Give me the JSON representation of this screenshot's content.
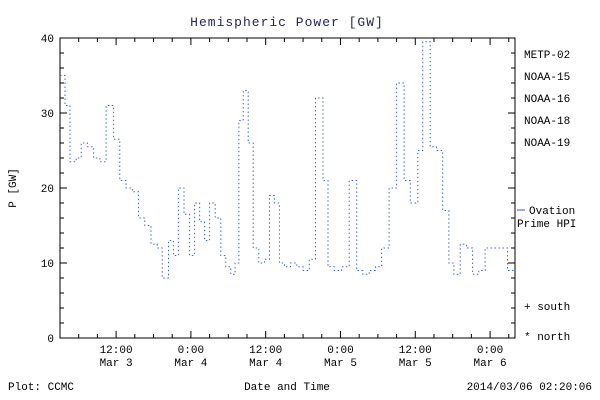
{
  "chart_data": {
    "type": "line",
    "title": "Hemispheric Power [GW]",
    "xlabel": "Date and Time",
    "ylabel": "P [GW]",
    "ylim": [
      0,
      40
    ],
    "xlim_hours": [
      0,
      73
    ],
    "grid": false,
    "legend_position": "right-outside",
    "y_ticks": [
      0,
      10,
      20,
      30,
      40
    ],
    "x_ticks": [
      {
        "t": 9,
        "time": "12:00",
        "date": "Mar 3"
      },
      {
        "t": 21,
        "time": "0:00",
        "date": "Mar 4"
      },
      {
        "t": 33,
        "time": "12:00",
        "date": "Mar 4"
      },
      {
        "t": 45,
        "time": "0:00",
        "date": "Mar 5"
      },
      {
        "t": 57,
        "time": "12:00",
        "date": "Mar 5"
      },
      {
        "t": 69,
        "time": "0:00",
        "date": "Mar 6"
      }
    ],
    "series": [
      {
        "name": "Ovation Prime HPI",
        "color": "#4466cc",
        "style": "dotted-step",
        "points": [
          [
            0,
            35
          ],
          [
            0.8,
            31
          ],
          [
            1.6,
            23.5
          ],
          [
            2.6,
            24
          ],
          [
            3.4,
            26
          ],
          [
            4.4,
            25.5
          ],
          [
            5.4,
            24
          ],
          [
            6.4,
            23.5
          ],
          [
            7.4,
            31
          ],
          [
            8.6,
            26.5
          ],
          [
            9.6,
            21
          ],
          [
            10.6,
            20
          ],
          [
            11.6,
            19.5
          ],
          [
            12.6,
            16
          ],
          [
            13.6,
            15
          ],
          [
            14.6,
            12.5
          ],
          [
            15.6,
            12
          ],
          [
            16.4,
            8
          ],
          [
            17.4,
            13
          ],
          [
            18.2,
            11
          ],
          [
            19.0,
            20
          ],
          [
            19.9,
            16.5
          ],
          [
            20.8,
            11
          ],
          [
            21.6,
            18
          ],
          [
            22.4,
            15.5
          ],
          [
            23.2,
            13
          ],
          [
            24.0,
            18
          ],
          [
            24.9,
            16
          ],
          [
            25.8,
            11
          ],
          [
            26.6,
            9.5
          ],
          [
            27.4,
            8.5
          ],
          [
            28.1,
            10
          ],
          [
            28.7,
            29
          ],
          [
            29.4,
            33
          ],
          [
            30.2,
            26
          ],
          [
            31.0,
            12
          ],
          [
            31.9,
            10
          ],
          [
            32.8,
            10.5
          ],
          [
            33.6,
            19
          ],
          [
            34.4,
            18
          ],
          [
            35.2,
            10
          ],
          [
            36.0,
            9.5
          ],
          [
            37.0,
            10
          ],
          [
            38.0,
            9.5
          ],
          [
            39.0,
            9
          ],
          [
            40.0,
            10.5
          ],
          [
            41.0,
            32
          ],
          [
            42.2,
            21
          ],
          [
            43.0,
            9.5
          ],
          [
            44.0,
            9
          ],
          [
            45.2,
            9.5
          ],
          [
            46.4,
            21
          ],
          [
            47.6,
            9
          ],
          [
            48.6,
            8.5
          ],
          [
            49.6,
            9
          ],
          [
            50.6,
            9.5
          ],
          [
            51.6,
            12
          ],
          [
            52.8,
            20
          ],
          [
            54.0,
            34
          ],
          [
            55.2,
            21
          ],
          [
            56.2,
            18
          ],
          [
            57.4,
            25
          ],
          [
            58.2,
            39.5
          ],
          [
            59.4,
            25.5
          ],
          [
            60.4,
            25
          ],
          [
            61.4,
            17
          ],
          [
            62.4,
            10
          ],
          [
            63.2,
            8.5
          ],
          [
            64.2,
            12.5
          ],
          [
            65.2,
            12
          ],
          [
            66.2,
            8.5
          ],
          [
            67.2,
            9
          ],
          [
            68.2,
            12
          ],
          [
            70.0,
            12
          ],
          [
            71.8,
            9
          ]
        ]
      }
    ],
    "legend": [
      {
        "label": "METP-02",
        "color": "#26265e"
      },
      {
        "label": "NOAA-15",
        "color": "#3355cc"
      },
      {
        "label": "NOAA-16",
        "color": "#33aadd"
      },
      {
        "label": "NOAA-18",
        "color": "#44cc88"
      },
      {
        "label": "NOAA-19",
        "color": "#ffaa44"
      }
    ],
    "side_annotation": {
      "line1": "Ovation",
      "line2": "Prime HPI",
      "color": "#3355cc"
    },
    "marker_legend": [
      {
        "symbol": "+",
        "label": "south"
      },
      {
        "symbol": "*",
        "label": "north"
      }
    ],
    "footer": {
      "left": "Plot: CCMC",
      "right": "2014/03/06 02:20:06"
    },
    "colors": {
      "axis": "#000000",
      "title": "#26265e",
      "background": "#ffffff"
    }
  }
}
